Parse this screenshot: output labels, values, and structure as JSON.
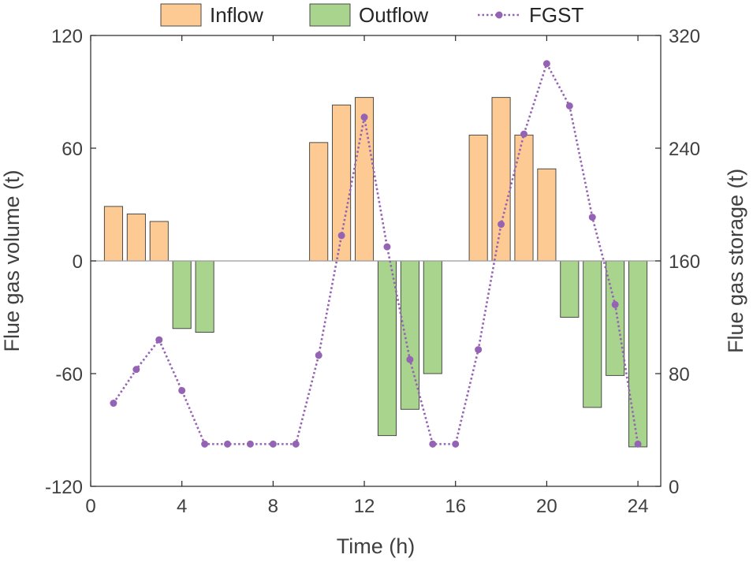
{
  "chart_data": {
    "type": "bar",
    "xlabel": "Time (h)",
    "ylabel": "Flue gas volume (t)",
    "ylabel_right": "Flue gas storage (t)",
    "xlim": [
      0,
      25
    ],
    "ylim": [
      -120,
      120
    ],
    "ylim_right": [
      0,
      320
    ],
    "x_ticks": [
      "0",
      "4",
      "8",
      "12",
      "16",
      "20",
      "24"
    ],
    "y_ticks": [
      "120",
      "60",
      "0",
      "-60",
      "-120"
    ],
    "y_ticks_right": [
      "320",
      "240",
      "160",
      "80",
      "0"
    ],
    "legend_position": "top",
    "x": [
      1,
      2,
      3,
      4,
      5,
      6,
      7,
      8,
      9,
      10,
      11,
      12,
      13,
      14,
      15,
      16,
      17,
      18,
      19,
      20,
      21,
      22,
      23,
      24
    ],
    "series": [
      {
        "name": "Inflow",
        "kind": "bar",
        "axis": "left",
        "color": "#fdca93",
        "values": [
          29,
          25,
          21,
          0,
          0,
          0,
          0,
          0,
          0,
          63,
          83,
          87,
          0,
          0,
          0,
          0,
          67,
          87,
          67,
          49,
          0,
          0,
          0,
          0
        ]
      },
      {
        "name": "Outflow",
        "kind": "bar",
        "axis": "left",
        "color": "#a9d48e",
        "values": [
          0,
          0,
          0,
          -36,
          -38,
          0,
          0,
          0,
          0,
          0,
          0,
          0,
          -93,
          -79,
          -60,
          0,
          0,
          0,
          0,
          0,
          -30,
          -78,
          -61,
          -99
        ]
      },
      {
        "name": "FGST",
        "kind": "line",
        "axis": "right",
        "color": "#9563b4",
        "values": [
          59,
          83,
          104,
          68,
          30,
          30,
          30,
          30,
          30,
          93,
          178,
          262,
          170,
          90,
          30,
          30,
          97,
          186,
          250,
          300,
          270,
          191,
          129,
          30
        ]
      }
    ]
  }
}
